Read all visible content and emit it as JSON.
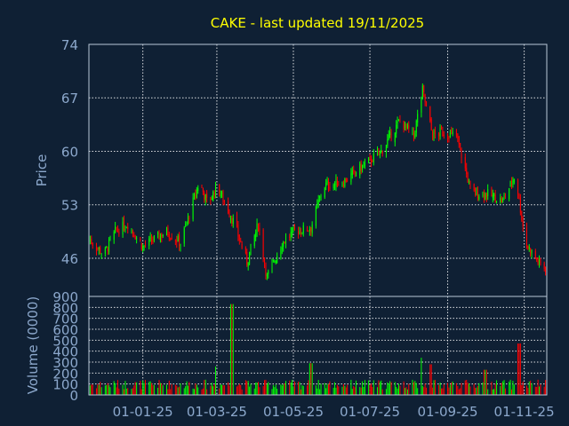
{
  "chart_data": {
    "type": "candlestick",
    "title": "CAKE - last updated 19/11/2025",
    "colors": {
      "background": "#0f2034",
      "title": "#ffff00",
      "text": "#8ca8cc",
      "up": "#00ff00",
      "down": "#ff0000",
      "grid": "#ffffff"
    },
    "x_tick_labels": [
      "01-01-25",
      "01-03-25",
      "01-05-25",
      "01-07-25",
      "01-09-25",
      "01-11-25"
    ],
    "x_range": [
      "2024-11-19",
      "2025-11-19"
    ],
    "price_panel": {
      "ylabel": "Price",
      "ylim": [
        41,
        74
      ],
      "y_ticks": [
        46,
        53,
        60,
        67,
        74
      ],
      "grid": true,
      "close_series_approx": [
        {
          "date": "2024-11-19",
          "close": 48.5
        },
        {
          "date": "2024-12-01",
          "close": 46.5
        },
        {
          "date": "2024-12-10",
          "close": 49.5
        },
        {
          "date": "2024-12-20",
          "close": 50.5
        },
        {
          "date": "2025-01-01",
          "close": 47.5
        },
        {
          "date": "2025-01-20",
          "close": 49.5
        },
        {
          "date": "2025-01-31",
          "close": 48.0
        },
        {
          "date": "2025-02-15",
          "close": 56.0
        },
        {
          "date": "2025-02-22",
          "close": 53.0
        },
        {
          "date": "2025-03-01",
          "close": 55.5
        },
        {
          "date": "2025-03-15",
          "close": 50.5
        },
        {
          "date": "2025-03-25",
          "close": 45.5
        },
        {
          "date": "2025-04-03",
          "close": 50.5
        },
        {
          "date": "2025-04-10",
          "close": 43.5
        },
        {
          "date": "2025-04-22",
          "close": 48.0
        },
        {
          "date": "2025-05-01",
          "close": 49.5
        },
        {
          "date": "2025-05-15",
          "close": 50.0
        },
        {
          "date": "2025-05-25",
          "close": 55.5
        },
        {
          "date": "2025-06-10",
          "close": 56.0
        },
        {
          "date": "2025-06-25",
          "close": 58.0
        },
        {
          "date": "2025-07-10",
          "close": 60.0
        },
        {
          "date": "2025-07-25",
          "close": 64.0
        },
        {
          "date": "2025-08-05",
          "close": 62.0
        },
        {
          "date": "2025-08-12",
          "close": 68.0
        },
        {
          "date": "2025-08-20",
          "close": 62.0
        },
        {
          "date": "2025-08-27",
          "close": 62.5
        },
        {
          "date": "2025-09-08",
          "close": 62.0
        },
        {
          "date": "2025-09-20",
          "close": 54.5
        },
        {
          "date": "2025-10-01",
          "close": 54.5
        },
        {
          "date": "2025-10-15",
          "close": 53.5
        },
        {
          "date": "2025-10-25",
          "close": 57.0
        },
        {
          "date": "2025-11-02",
          "close": 48.0
        },
        {
          "date": "2025-11-12",
          "close": 45.5
        },
        {
          "date": "2025-11-19",
          "close": 44.5
        }
      ]
    },
    "volume_panel": {
      "ylabel": "Volume (0000)",
      "ylim": [
        0,
        900
      ],
      "y_ticks": [
        0,
        100,
        200,
        300,
        400,
        500,
        600,
        700,
        800,
        900
      ],
      "grid": true,
      "typical_volume": 100,
      "spikes": [
        {
          "date": "2025-03-01",
          "volume": 260
        },
        {
          "date": "2025-03-13",
          "volume": 830
        },
        {
          "date": "2025-05-15",
          "volume": 290
        },
        {
          "date": "2025-08-10",
          "volume": 340
        },
        {
          "date": "2025-08-18",
          "volume": 280
        },
        {
          "date": "2025-10-01",
          "volume": 230
        },
        {
          "date": "2025-10-28",
          "volume": 470
        }
      ]
    }
  }
}
